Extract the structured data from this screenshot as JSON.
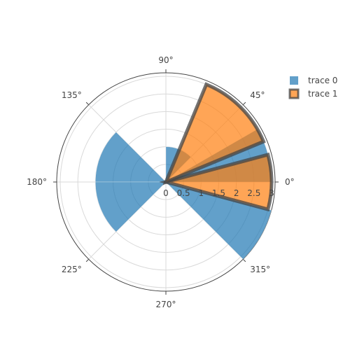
{
  "chart_data": {
    "type": "barpolar",
    "angular_ticks": [
      "0°",
      "45°",
      "90°",
      "135°",
      "180°",
      "225°",
      "270°",
      "315°"
    ],
    "radial_ticks": [
      "0",
      "0.5",
      "1",
      "1.5",
      "2",
      "2.5",
      "3"
    ],
    "radial_range": [
      0,
      3.1
    ],
    "grid": true,
    "legend_position": "top-right",
    "series": [
      {
        "name": "trace 0",
        "color": "#1f77b4",
        "opacity": 0.7,
        "outline": false,
        "bars": [
          {
            "theta_start": 0,
            "theta_end": 30,
            "r": 3.0
          },
          {
            "theta_start": 45,
            "theta_end": 90,
            "r": 1.0
          },
          {
            "theta_start": 135,
            "theta_end": 180,
            "r": 2.0
          },
          {
            "theta_start": 180,
            "theta_end": 225,
            "r": 2.0
          },
          {
            "theta_start": 315,
            "theta_end": 345,
            "r": 3.1
          }
        ]
      },
      {
        "name": "trace 1",
        "color": "#ff7f0e",
        "opacity": 0.7,
        "outline": true,
        "outline_color": "#444444",
        "bars": [
          {
            "theta_start": 345,
            "theta_end": 15,
            "r": 3.0
          },
          {
            "theta_start": 22.5,
            "theta_end": 67.5,
            "r": 3.0
          }
        ]
      }
    ]
  }
}
